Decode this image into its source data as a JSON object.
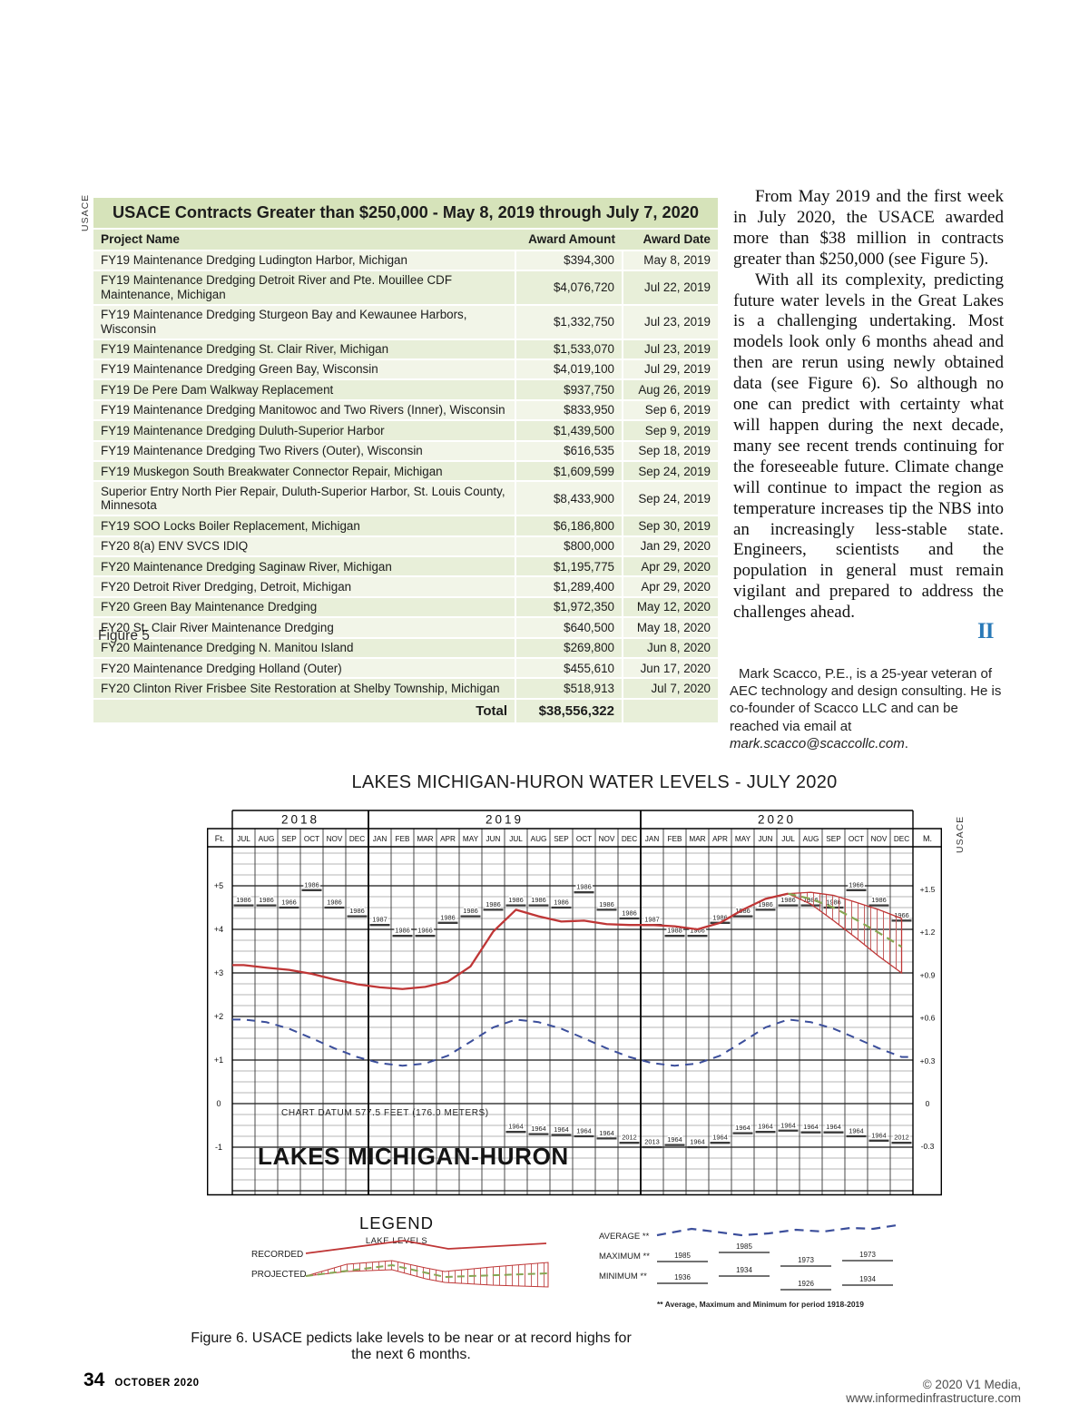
{
  "credits": {
    "left_vertical": "USACE",
    "chart_vertical": "USACE"
  },
  "table": {
    "title": "USACE Contracts Greater than $250,000 -  May 8, 2019 through July 7, 2020",
    "columns": [
      "Project Name",
      "Award Amount",
      "Award Date"
    ],
    "rows": [
      [
        "FY19 Maintenance Dredging Ludington Harbor, Michigan",
        "$394,300",
        "May 8, 2019"
      ],
      [
        "FY19 Maintenance Dredging Detroit River and Pte. Mouillee CDF Maintenance, Michigan",
        "$4,076,720",
        "Jul 22, 2019"
      ],
      [
        "FY19 Maintenance Dredging Sturgeon Bay and Kewaunee Harbors, Wisconsin",
        "$1,332,750",
        "Jul 23, 2019"
      ],
      [
        "FY19 Maintenance Dredging St. Clair River, Michigan",
        "$1,533,070",
        "Jul 23, 2019"
      ],
      [
        "FY19 Maintenance Dredging Green Bay, Wisconsin",
        "$4,019,100",
        "Jul 29, 2019"
      ],
      [
        "FY19 De Pere Dam Walkway Replacement",
        "$937,750",
        "Aug 26, 2019"
      ],
      [
        "FY19 Maintenance Dredging Manitowoc and Two Rivers (Inner), Wisconsin",
        "$833,950",
        "Sep 6, 2019"
      ],
      [
        "FY19 Maintenance Dredging Duluth-Superior Harbor",
        "$1,439,500",
        "Sep 9, 2019"
      ],
      [
        "FY19 Maintenance Dredging Two Rivers (Outer), Wisconsin",
        "$616,535",
        "Sep 18, 2019"
      ],
      [
        "FY19 Muskegon South Breakwater Connector Repair, Michigan",
        "$1,609,599",
        "Sep 24, 2019"
      ],
      [
        "Superior Entry North Pier Repair, Duluth-Superior Harbor, St. Louis County, Minnesota",
        "$8,433,900",
        "Sep 24, 2019"
      ],
      [
        "FY19 SOO Locks Boiler Replacement, Michigan",
        "$6,186,800",
        "Sep 30, 2019"
      ],
      [
        "FY20 8(a) ENV SVCS IDIQ",
        "$800,000",
        "Jan 29, 2020"
      ],
      [
        "FY20 Maintenance Dredging Saginaw River, Michigan",
        "$1,195,775",
        "Apr 29, 2020"
      ],
      [
        "FY20 Detroit River Dredging, Detroit, Michigan",
        "$1,289,400",
        "Apr 29, 2020"
      ],
      [
        "FY20 Green Bay Maintenance Dredging",
        "$1,972,350",
        "May 12, 2020"
      ],
      [
        "FY20 St. Clair River Maintenance Dredging",
        "$640,500",
        "May 18, 2020"
      ],
      [
        "FY20 Maintenance Dredging N. Manitou Island",
        "$269,800",
        "Jun 8, 2020"
      ],
      [
        "FY20 Maintenance Dredging Holland (Outer)",
        "$455,610",
        "Jun 17, 2020"
      ],
      [
        "FY20 Clinton River Frisbee Site Restoration at Shelby Township, Michigan",
        "$518,913",
        "Jul 7, 2020"
      ]
    ],
    "total_label": "Total",
    "total_amount": "$38,556,322",
    "caption": "Figure 5"
  },
  "article": {
    "paragraphs": [
      "From May 2019 and the first week in July 2020, the USACE awarded more than $38 million in contracts greater than $250,000 (see Figure 5).",
      "With all its complexity, predicting future water levels in the Great Lakes is a challenging undertaking. Most models look only 6 months ahead and then are rerun using newly obtained data (see Figure 6). So although no one can predict with certainty what will happen during the next decade, many see recent trends continuing for the foreseeable future. Climate change will continue to impact the region as temperature increases tip the NBS into an increasingly less-stable state. Engineers, scientists and the population in general must remain vigilant and prepared to address the challenges ahead."
    ],
    "end_mark": "II",
    "bio_text": "Mark Scacco, P.E., is a 25-year veteran of AEC technology and design consulting. He is co-founder of Scacco LLC and can be reached via email at ",
    "bio_email": "mark.scacco@scaccollc.com",
    "bio_suffix": "."
  },
  "chart_data": {
    "type": "line",
    "title": "LAKES MICHIGAN-HURON WATER LEVELS - JULY 2020",
    "unit_left": "Ft.",
    "unit_right": "M.",
    "datum_note": "CHART DATUM 577.5 FEET (176.0 METERS)",
    "watermark": "LAKES MICHIGAN-HURON",
    "ylim_ft": [
      -2.1,
      5.9
    ],
    "grid": true,
    "years": [
      {
        "label": "2018",
        "from": 0,
        "to": 6
      },
      {
        "label": "2019",
        "from": 6,
        "to": 18
      },
      {
        "label": "2020",
        "from": 18,
        "to": 30
      }
    ],
    "months": [
      "JUL",
      "AUG",
      "SEP",
      "OCT",
      "NOV",
      "DEC",
      "JAN",
      "FEB",
      "MAR",
      "APR",
      "MAY",
      "JUN",
      "JUL",
      "AUG",
      "SEP",
      "OCT",
      "NOV",
      "DEC",
      "JAN",
      "FEB",
      "MAR",
      "APR",
      "MAY",
      "JUN",
      "JUL",
      "AUG",
      "SEP",
      "OCT",
      "NOV",
      "DEC"
    ],
    "left_ticks": [
      {
        "v": 5,
        "label": "+5"
      },
      {
        "v": 4,
        "label": "+4"
      },
      {
        "v": 3,
        "label": "+3"
      },
      {
        "v": 2,
        "label": "+2"
      },
      {
        "v": 1,
        "label": "+1"
      },
      {
        "v": 0,
        "label": "0"
      },
      {
        "v": -1,
        "label": "-1"
      }
    ],
    "right_ticks": [
      {
        "v": 1.5,
        "label": "+1.5"
      },
      {
        "v": 1.2,
        "label": "+1.2"
      },
      {
        "v": 0.9,
        "label": "+0.9"
      },
      {
        "v": 0.6,
        "label": "+0.6"
      },
      {
        "v": 0.3,
        "label": "+0.3"
      },
      {
        "v": 0,
        "label": "0"
      },
      {
        "v": -0.3,
        "label": "-0.3"
      }
    ],
    "recorded_ft": [
      3.18,
      3.12,
      3.07,
      2.98,
      2.85,
      2.74,
      2.67,
      2.63,
      2.68,
      2.8,
      3.15,
      3.95,
      4.45,
      4.3,
      4.18,
      4.2,
      4.12,
      4.1,
      4.1,
      4.07,
      4.0,
      4.15,
      4.45,
      4.7,
      4.82
    ],
    "average_ft": [
      1.93,
      1.87,
      1.72,
      1.5,
      1.27,
      1.07,
      0.93,
      0.87,
      0.92,
      1.1,
      1.42,
      1.75,
      1.93,
      1.87,
      1.72,
      1.5,
      1.27,
      1.07,
      0.93,
      0.87,
      0.92,
      1.1,
      1.42,
      1.75,
      1.93,
      1.87,
      1.72,
      1.5,
      1.27,
      1.07
    ],
    "projected": {
      "start_index": 24,
      "upper_ft": [
        4.82,
        4.85,
        4.78,
        4.62,
        4.45,
        4.25
      ],
      "mid_ft": [
        4.82,
        4.7,
        4.5,
        4.22,
        3.92,
        3.6
      ],
      "lower_ft": [
        4.82,
        4.58,
        4.2,
        3.8,
        3.38,
        3.0
      ]
    },
    "max_bars": [
      [
        0,
        4.55,
        "1986"
      ],
      [
        1,
        4.55,
        "1986"
      ],
      [
        2,
        4.5,
        "1966"
      ],
      [
        3,
        4.9,
        "1986"
      ],
      [
        4,
        4.5,
        "1986"
      ],
      [
        5,
        4.3,
        "1986"
      ],
      [
        6,
        4.1,
        "1987"
      ],
      [
        7,
        3.85,
        "1986"
      ],
      [
        8,
        3.85,
        "1966"
      ],
      [
        9,
        4.15,
        "1986"
      ],
      [
        10,
        4.3,
        "1986"
      ],
      [
        11,
        4.45,
        "1986"
      ],
      [
        12,
        4.55,
        "1986"
      ],
      [
        13,
        4.55,
        "1986"
      ],
      [
        14,
        4.5,
        "1986"
      ],
      [
        15,
        4.85,
        "1986"
      ],
      [
        16,
        4.45,
        "1986"
      ],
      [
        17,
        4.25,
        "1986"
      ],
      [
        18,
        4.1,
        "1987"
      ],
      [
        19,
        3.85,
        "1988"
      ],
      [
        20,
        3.85,
        "1966"
      ],
      [
        21,
        4.15,
        "1986"
      ],
      [
        22,
        4.3,
        "1986"
      ],
      [
        23,
        4.45,
        "1986"
      ],
      [
        24,
        4.55,
        "1986"
      ],
      [
        25,
        4.55,
        "1986"
      ],
      [
        26,
        4.5,
        "1986"
      ],
      [
        27,
        4.9,
        "1966"
      ],
      [
        28,
        4.55,
        "1986"
      ],
      [
        29,
        4.2,
        "1966"
      ]
    ],
    "min_bars": [
      [
        12,
        -0.65,
        "1964"
      ],
      [
        13,
        -0.7,
        "1964"
      ],
      [
        14,
        -0.72,
        "1964"
      ],
      [
        15,
        -0.75,
        "1964"
      ],
      [
        16,
        -0.8,
        "1964"
      ],
      [
        17,
        -0.9,
        "2012"
      ],
      [
        18,
        -1.0,
        "2013"
      ],
      [
        19,
        -0.95,
        "1964"
      ],
      [
        20,
        -1.0,
        "1964"
      ],
      [
        21,
        -0.9,
        "1964"
      ],
      [
        22,
        -0.68,
        "1964"
      ],
      [
        23,
        -0.65,
        "1964"
      ],
      [
        24,
        -0.62,
        "1964"
      ],
      [
        25,
        -0.66,
        "1964"
      ],
      [
        26,
        -0.66,
        "1964"
      ],
      [
        27,
        -0.75,
        "1964"
      ],
      [
        28,
        -0.85,
        "1964"
      ],
      [
        29,
        -0.9,
        "2012"
      ]
    ],
    "colors": {
      "recorded": "#bf3636",
      "average": "#3b4e9b",
      "projected_mid": "#86a653",
      "bars": "#3a3a3a"
    }
  },
  "legend": {
    "title": "LEGEND",
    "subtitle": "LAKE LEVELS",
    "recorded_label": "RECORDED",
    "projected_label": "PROJECTED",
    "average_label": "AVERAGE **",
    "maximum_label": "MAXIMUM **",
    "minimum_label": "MINIMUM **",
    "maximum_years": [
      "1985",
      "1985",
      "1973",
      "1973"
    ],
    "minimum_years": [
      "1936",
      "1934",
      "1926",
      "1934"
    ],
    "note": "** Average, Maximum and Minimum for period 1918-2019"
  },
  "figure6_caption": "Figure 6. USACE pedicts lake levels to be near or at record highs for the next 6 months.",
  "footer": {
    "page_number": "34",
    "issue": "OCTOBER 2020",
    "copyright": "© 2020 V1 Media, www.informedinfrastructure.com"
  }
}
